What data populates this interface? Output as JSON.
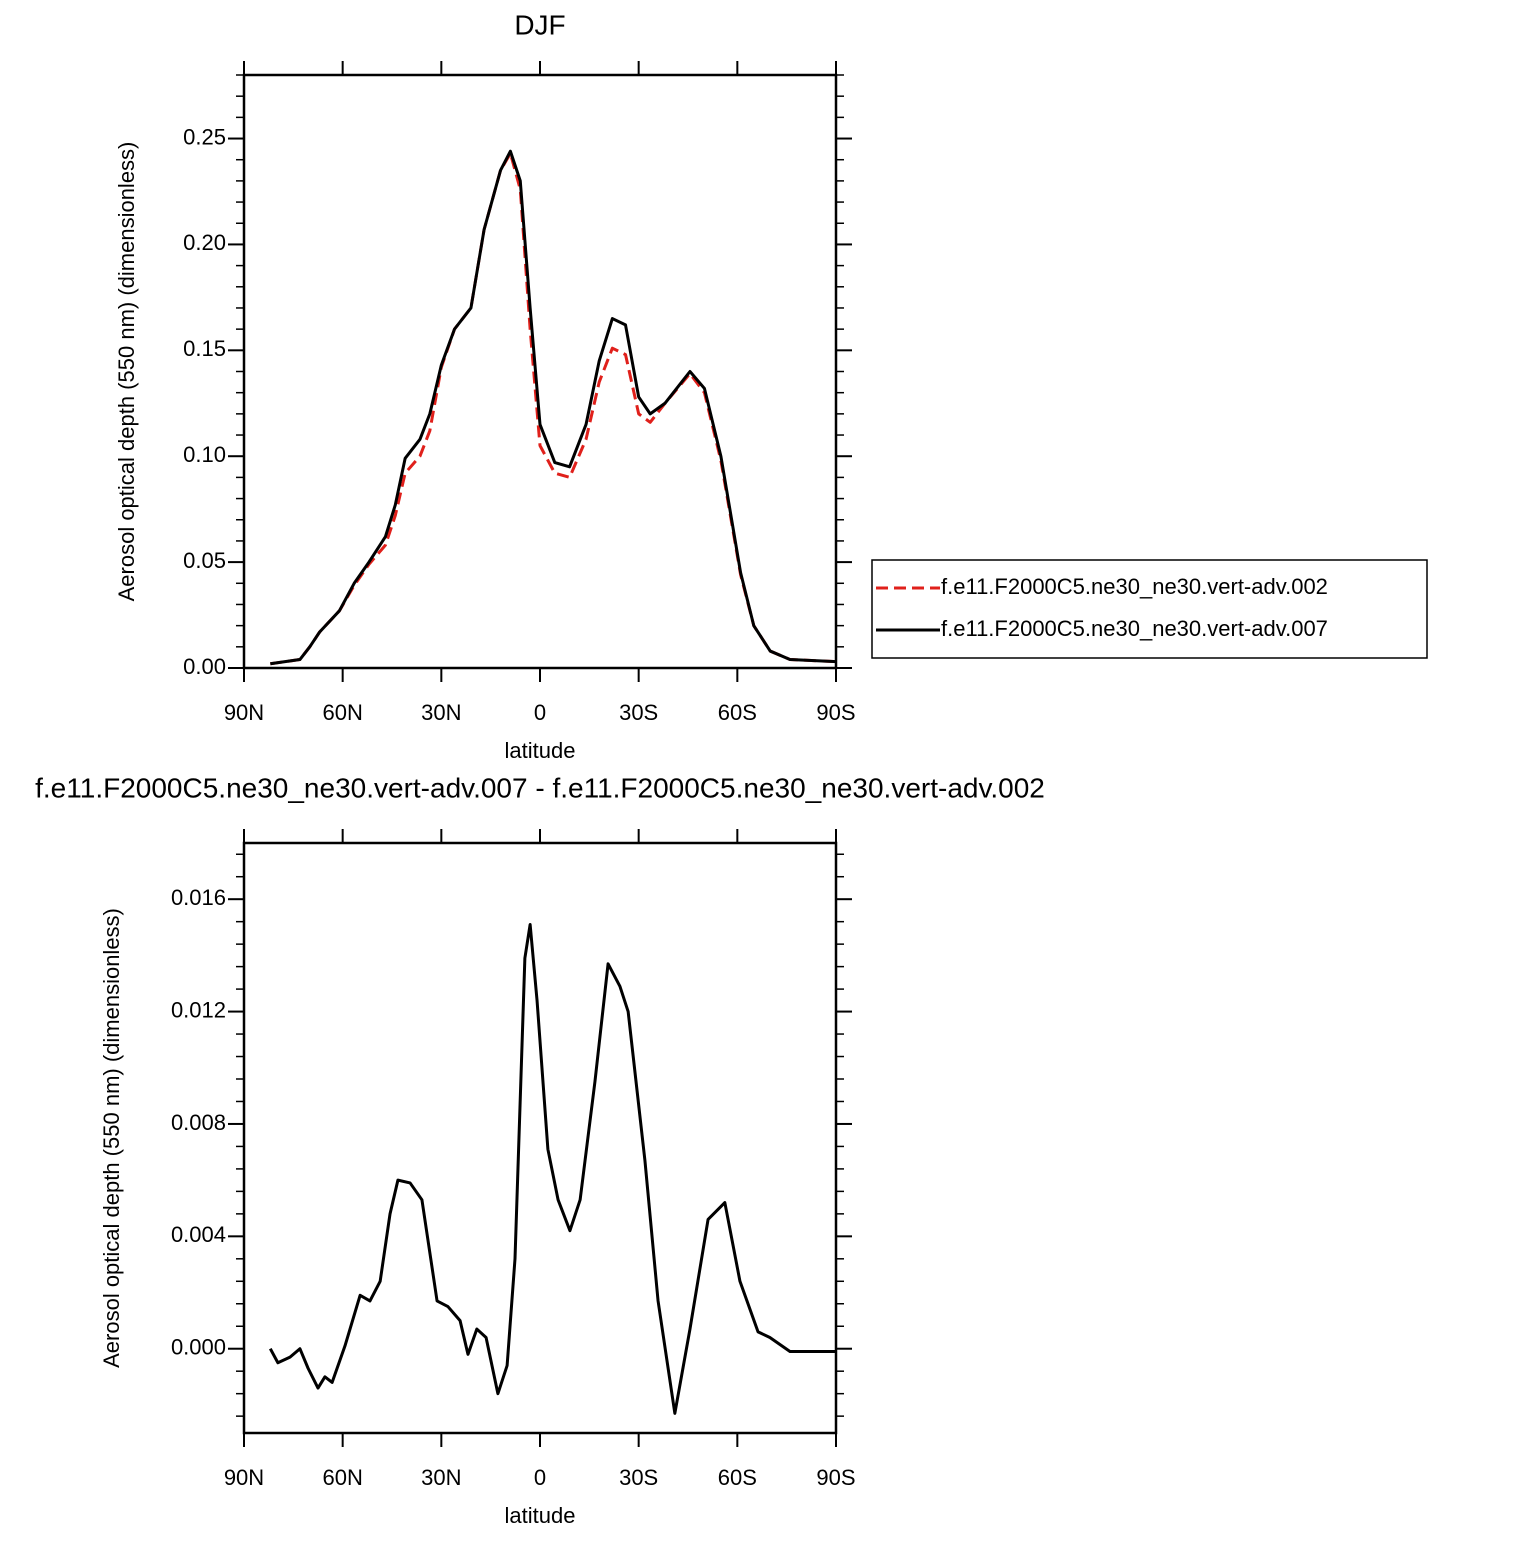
{
  "chart_data": [
    {
      "type": "line",
      "title": "DJF",
      "xlabel": "latitude",
      "ylabel": "Aerosol optical depth (550 nm) (dimensionless)",
      "x": [
        82,
        73,
        70,
        67,
        61,
        56.5,
        52,
        47,
        44,
        41,
        36.5,
        33.5,
        30,
        26,
        21,
        17,
        12,
        9,
        6,
        3,
        0,
        -4.5,
        -9,
        -14,
        -18,
        -22,
        -26,
        -30,
        -33.5,
        -38,
        -45.6,
        -50,
        -55,
        -61,
        -65,
        -70,
        -76,
        -90
      ],
      "series": [
        {
          "name": "f.e11.F2000C5.ne30_ne30.vert-adv.002",
          "color": "#e0201b",
          "line_style": "dashed",
          "values": [
            0.002,
            0.004,
            0.01,
            0.017,
            0.027,
            0.039,
            0.049,
            0.058,
            0.072,
            0.092,
            0.1,
            0.112,
            0.142,
            0.16,
            0.17,
            0.207,
            0.235,
            0.243,
            0.226,
            0.16,
            0.105,
            0.092,
            0.09,
            0.108,
            0.135,
            0.151,
            0.148,
            0.12,
            0.116,
            0.125,
            0.139,
            0.13,
            0.098,
            0.044,
            0.02,
            0.008,
            0.004,
            0.003
          ]
        },
        {
          "name": "f.e11.F2000C5.ne30_ne30.vert-adv.007",
          "color": "#000000",
          "line_style": "solid",
          "values": [
            0.002,
            0.004,
            0.01,
            0.017,
            0.027,
            0.04,
            0.05,
            0.062,
            0.077,
            0.099,
            0.108,
            0.12,
            0.143,
            0.16,
            0.17,
            0.207,
            0.235,
            0.244,
            0.23,
            0.17,
            0.115,
            0.097,
            0.095,
            0.115,
            0.145,
            0.165,
            0.162,
            0.128,
            0.12,
            0.125,
            0.14,
            0.132,
            0.1,
            0.045,
            0.02,
            0.008,
            0.004,
            0.003
          ]
        }
      ],
      "xlim": [
        90,
        -90
      ],
      "xticks": [
        {
          "value": 90,
          "label": "90N"
        },
        {
          "value": 60,
          "label": "60N"
        },
        {
          "value": 30,
          "label": "30N"
        },
        0,
        {
          "value": -30,
          "label": "30S"
        },
        {
          "value": -60,
          "label": "60S"
        },
        {
          "value": -90,
          "label": "90S"
        }
      ],
      "ylim": [
        0,
        0.28
      ],
      "yticks": [
        {
          "value": 0,
          "label": "0.00"
        },
        {
          "value": 0.05,
          "label": "0.05"
        },
        {
          "value": 0.1,
          "label": "0.10"
        },
        {
          "value": 0.15,
          "label": "0.15"
        },
        {
          "value": 0.2,
          "label": "0.20"
        },
        {
          "value": 0.25,
          "label": "0.25"
        }
      ],
      "legend": "right"
    },
    {
      "type": "line",
      "title": "f.e11.F2000C5.ne30_ne30.vert-adv.007 - f.e11.F2000C5.ne30_ne30.vert-adv.002",
      "xlabel": "latitude",
      "ylabel": "Aerosol optical depth (550 nm) (dimensionless)",
      "x": [
        82,
        79.7,
        76,
        73,
        70.5,
        67.5,
        65.4,
        63.2,
        59.3,
        54.7,
        51.7,
        48.6,
        45.6,
        43.2,
        39.5,
        35.9,
        31.3,
        28,
        24.3,
        21.9,
        19.2,
        16.4,
        12.8,
        10,
        7.6,
        4.6,
        3,
        0.9,
        -2.4,
        -5.5,
        -9.1,
        -12.2,
        -16.7,
        -20.7,
        -24.3,
        -26.8,
        -31.9,
        -35.9,
        -41,
        -45.6,
        -51.1,
        -56.2,
        -60.8,
        -66.3,
        -69.9,
        -76,
        -90
      ],
      "series": [
        {
          "color": "#000000",
          "line_style": "solid",
          "values": [
            0.0,
            -0.0005,
            -0.0003,
            0.0,
            -0.0007,
            -0.0014,
            -0.001,
            -0.0012,
            0.0001,
            0.0019,
            0.0017,
            0.0024,
            0.0048,
            0.006,
            0.0059,
            0.0053,
            0.0017,
            0.0015,
            0.001,
            -0.0002,
            0.0007,
            0.0004,
            -0.0016,
            -0.0006,
            0.0032,
            0.0139,
            0.0151,
            0.0124,
            0.0071,
            0.0053,
            0.0042,
            0.0053,
            0.0095,
            0.0137,
            0.0129,
            0.012,
            0.0067,
            0.0017,
            -0.0023,
            0.0007,
            0.0046,
            0.0052,
            0.0024,
            0.0006,
            0.0004,
            -0.0001,
            -0.0001
          ]
        }
      ],
      "xlim": [
        90,
        -90
      ],
      "xticks": [
        {
          "value": 90,
          "label": "90N"
        },
        {
          "value": 60,
          "label": "60N"
        },
        {
          "value": 30,
          "label": "30N"
        },
        0,
        {
          "value": -30,
          "label": "30S"
        },
        {
          "value": -60,
          "label": "60S"
        },
        {
          "value": -90,
          "label": "90S"
        }
      ],
      "ylim": [
        -0.003,
        0.018
      ],
      "yticks": [
        {
          "value": 0,
          "label": "0.000"
        },
        {
          "value": 0.004,
          "label": "0.004"
        },
        {
          "value": 0.008,
          "label": "0.008"
        },
        {
          "value": 0.012,
          "label": "0.012"
        },
        {
          "value": 0.016,
          "label": "0.016"
        }
      ]
    }
  ]
}
